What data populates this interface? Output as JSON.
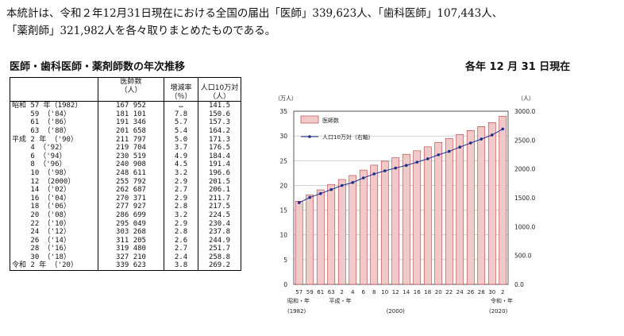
{
  "intro": {
    "line1": "本統計は、令和２年12月31日現在における全国の届出「医師」339,623人、「歯科医師」107,443人、",
    "line2": "「薬剤師」321,982人を各々取りまとめたものである。"
  },
  "section_title": "医師・歯科医師・薬剤師数の年次推移",
  "as_of": "各年 12 月 31 日現在",
  "table": {
    "headers": {
      "doctors": "医師数",
      "doctors_unit": "（人）",
      "rate": "増減率",
      "rate_unit": "（％）",
      "per100k": "人口10万対",
      "per100k_unit": "（人）"
    },
    "rows": [
      {
        "era": "昭和 57 年（1982）",
        "doctors": "167 952",
        "rate": "…",
        "per100k": "141.5"
      },
      {
        "era": "　　 59 （'84）",
        "doctors": "181 101",
        "rate": "7.8",
        "per100k": "150.6"
      },
      {
        "era": "　　 61 （'86）",
        "doctors": "191 346",
        "rate": "5.7",
        "per100k": "157.3"
      },
      {
        "era": "　　 63 （'88）",
        "doctors": "201 658",
        "rate": "5.4",
        "per100k": "164.2"
      },
      {
        "era": "平成 2 年 （'90）",
        "doctors": "211 797",
        "rate": "5.0",
        "per100k": "171.3"
      },
      {
        "era": "　　 4 （'92）",
        "doctors": "219 704",
        "rate": "3.7",
        "per100k": "176.5"
      },
      {
        "era": "　　 6 （'94）",
        "doctors": "230 519",
        "rate": "4.9",
        "per100k": "184.4"
      },
      {
        "era": "　　 8 （'96）",
        "doctors": "240 908",
        "rate": "4.5",
        "per100k": "191.4"
      },
      {
        "era": "　　 10 （'98）",
        "doctors": "248 611",
        "rate": "3.2",
        "per100k": "196.6"
      },
      {
        "era": "　　 12 （2000）",
        "doctors": "255 792",
        "rate": "2.9",
        "per100k": "201.5"
      },
      {
        "era": "　　 14 （'02）",
        "doctors": "262 687",
        "rate": "2.7",
        "per100k": "206.1"
      },
      {
        "era": "　　 16 （'04）",
        "doctors": "270 371",
        "rate": "2.9",
        "per100k": "211.7"
      },
      {
        "era": "　　 18 （'06）",
        "doctors": "277 927",
        "rate": "2.8",
        "per100k": "217.5"
      },
      {
        "era": "　　 20 （'08）",
        "doctors": "286 699",
        "rate": "3.2",
        "per100k": "224.5"
      },
      {
        "era": "　　 22 （'10）",
        "doctors": "295 049",
        "rate": "2.9",
        "per100k": "230.4"
      },
      {
        "era": "　　 24 （'12）",
        "doctors": "303 268",
        "rate": "2.8",
        "per100k": "237.8"
      },
      {
        "era": "　　 26 （'14）",
        "doctors": "311 205",
        "rate": "2.6",
        "per100k": "244.9"
      },
      {
        "era": "　　 28 （'16）",
        "doctors": "319 480",
        "rate": "2.7",
        "per100k": "251.7"
      },
      {
        "era": "　　 30 （'18）",
        "doctors": "327 210",
        "rate": "2.4",
        "per100k": "258.8"
      },
      {
        "era": "令和 2 年 （'20）",
        "doctors": "339 623",
        "rate": "3.8",
        "per100k": "269.2"
      }
    ]
  },
  "chart_data": {
    "type": "bar",
    "categories": [
      "57",
      "59",
      "61",
      "63",
      "2",
      "4",
      "6",
      "8",
      "10",
      "12",
      "14",
      "16",
      "18",
      "20",
      "22",
      "24",
      "26",
      "28",
      "30",
      "2"
    ],
    "series": [
      {
        "name": "医師数",
        "axis": "left",
        "values": [
          16.8,
          18.1,
          19.1,
          20.2,
          21.2,
          22.0,
          23.1,
          24.1,
          24.9,
          25.6,
          26.3,
          27.0,
          27.8,
          28.7,
          29.5,
          30.3,
          31.1,
          31.9,
          32.7,
          34.0
        ]
      },
      {
        "name": "人口10万対（右軸）",
        "axis": "right",
        "type": "line",
        "values": [
          141.5,
          150.6,
          157.3,
          164.2,
          171.3,
          176.5,
          184.4,
          191.4,
          196.6,
          201.5,
          206.1,
          211.7,
          217.5,
          224.5,
          230.4,
          237.8,
          244.9,
          251.7,
          258.8,
          269.2
        ]
      }
    ],
    "left_axis": {
      "unit": "（万人）",
      "ylim": [
        0,
        35
      ],
      "ticks": [
        "0",
        "5",
        "10",
        "15",
        "20",
        "25",
        "30",
        "35"
      ]
    },
    "right_axis": {
      "unit": "（人）",
      "ylim": [
        0,
        3000
      ],
      "ticks": [
        "0.0",
        "500.0",
        "1000.0",
        "1500.0",
        "2000.0",
        "2500.0",
        "3000.0"
      ]
    },
    "era_labels": {
      "showa": "昭和・年",
      "heisei": "平成・年",
      "reiwa": "令和・年"
    },
    "year_labels": {
      "start": "(1982)",
      "mid": "(2000)",
      "end": "(2020)"
    },
    "legend_position": "top-left",
    "colors": {
      "bar_fill": "#f2c9c9",
      "bar_stroke": "#b03a3a",
      "line": "#1a2f8c"
    }
  }
}
